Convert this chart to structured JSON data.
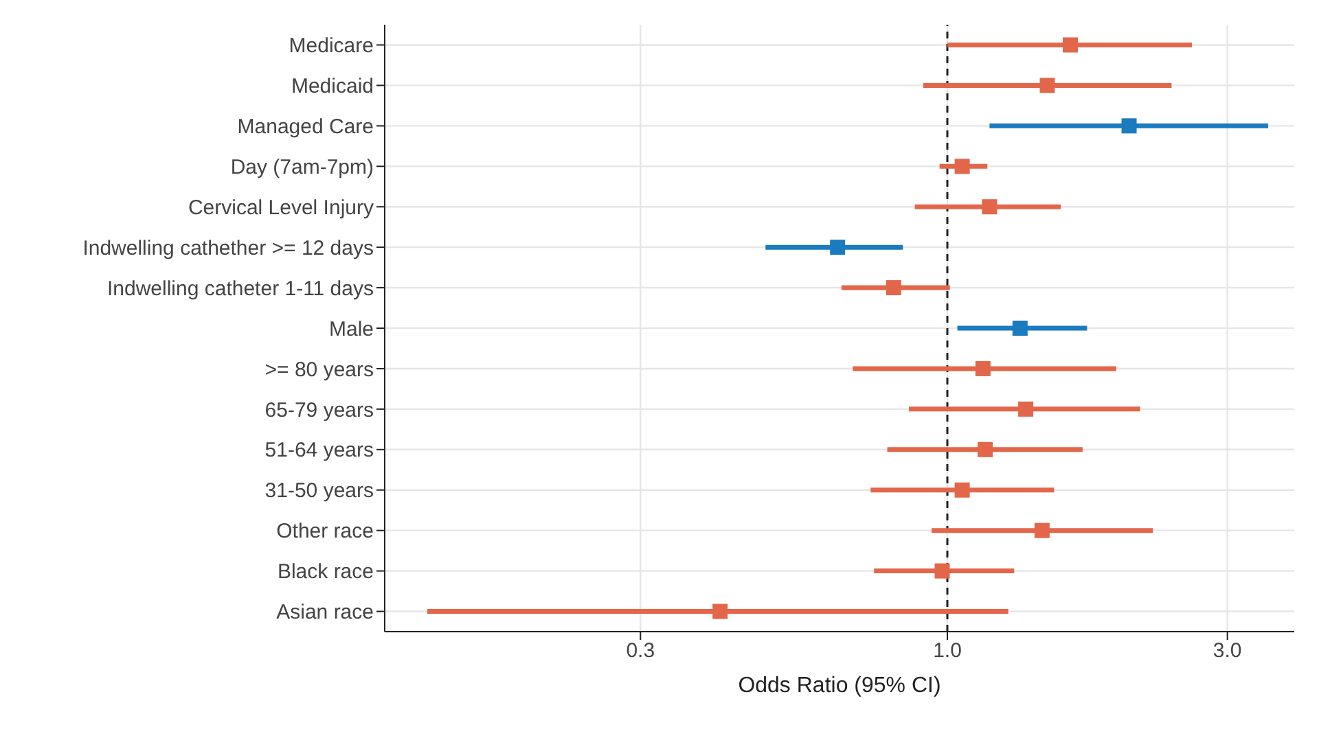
{
  "chart_data": {
    "type": "scatter",
    "orientation": "horizontal",
    "xlabel": "Odds Ratio (95% CI)",
    "categories": [
      "Medicare",
      "Medicaid",
      "Managed Care",
      "Day (7am-7pm)",
      "Cervical Level Injury",
      "Indwelling cathether >= 12 days",
      "Indwelling catheter 1-11 days",
      "Male",
      ">= 80 years",
      "65-79 years",
      "51-64 years",
      "31-50 years",
      "Other race",
      "Black race",
      "Asian race"
    ],
    "values": [
      1.62,
      1.48,
      2.04,
      1.06,
      1.18,
      0.65,
      0.81,
      1.33,
      1.15,
      1.36,
      1.16,
      1.06,
      1.45,
      0.98,
      0.41
    ],
    "errors": [
      [
        1.0,
        2.61
      ],
      [
        0.91,
        2.41
      ],
      [
        1.18,
        3.52
      ],
      [
        0.97,
        1.17
      ],
      [
        0.88,
        1.56
      ],
      [
        0.49,
        0.84
      ],
      [
        0.66,
        1.01
      ],
      [
        1.04,
        1.73
      ],
      [
        0.69,
        1.94
      ],
      [
        0.86,
        2.13
      ],
      [
        0.79,
        1.7
      ],
      [
        0.74,
        1.52
      ],
      [
        0.94,
        2.24
      ],
      [
        0.75,
        1.3
      ],
      [
        0.13,
        1.27
      ]
    ],
    "colors": [
      "#e2674a",
      "#e2674a",
      "#1a7bbf",
      "#e2674a",
      "#e2674a",
      "#1a7bbf",
      "#e2674a",
      "#1a7bbf",
      "#e2674a",
      "#e2674a",
      "#e2674a",
      "#e2674a",
      "#e2674a",
      "#e2674a",
      "#e2674a"
    ],
    "log": "x",
    "xlim": [
      0.11,
      3.9
    ],
    "xticks": [
      0.3,
      {
        "value": 1,
        "label": "1.0"
      },
      {
        "value": 3,
        "label": "3.0"
      }
    ],
    "ref_lines": [
      {
        "axis": "x",
        "value": 1,
        "line_style": "dashed",
        "color": "#222222"
      }
    ],
    "grid": true,
    "marker": "square"
  }
}
